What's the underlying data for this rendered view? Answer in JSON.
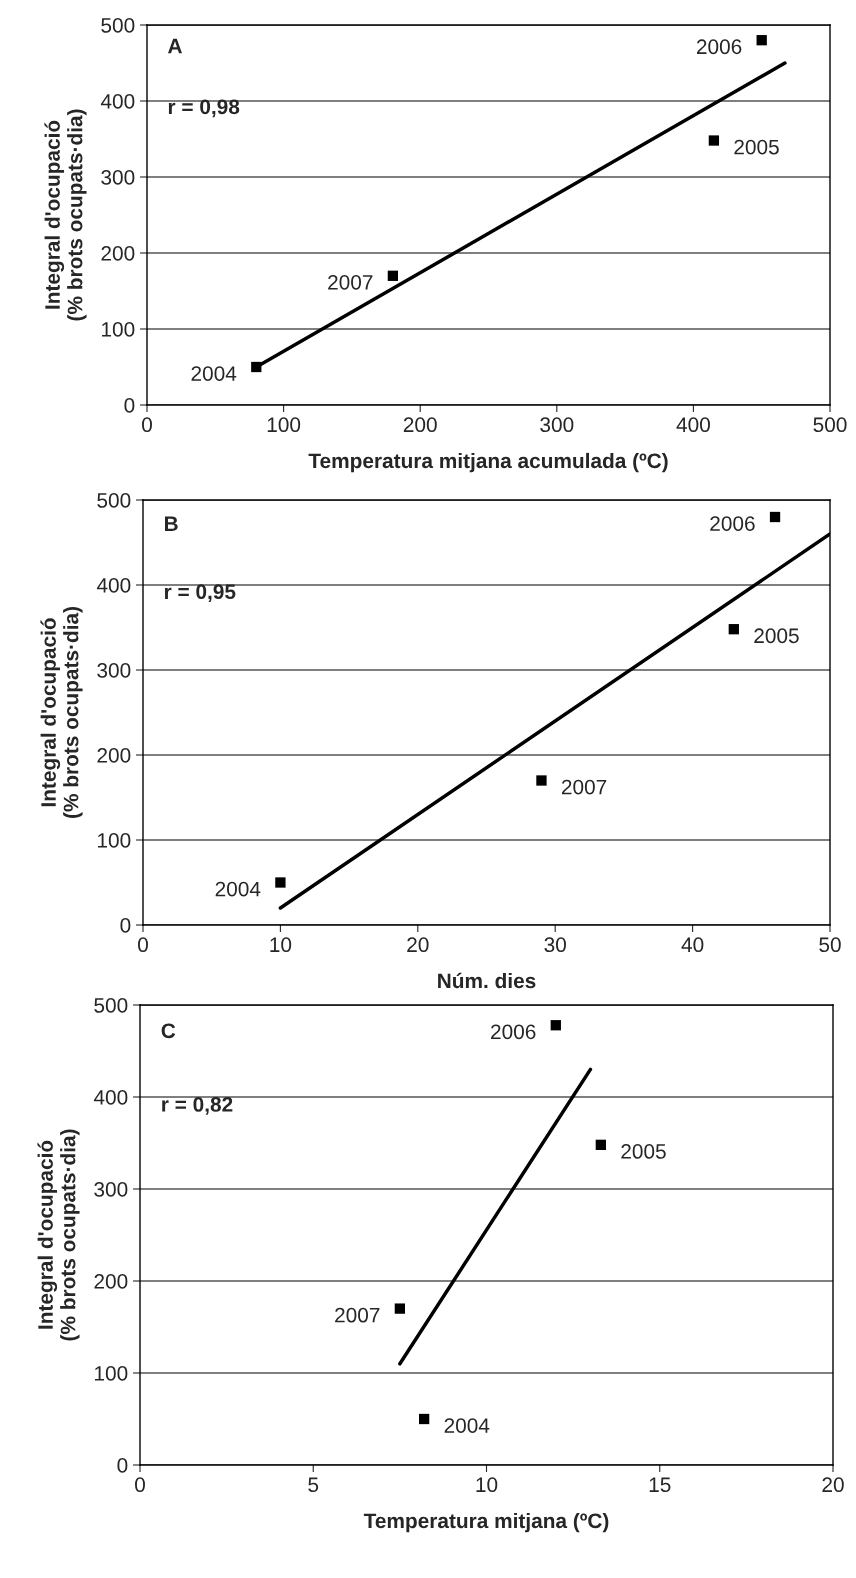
{
  "chart_data": [
    {
      "type": "scatter",
      "xlabel": "Temperatura mitjana acumulada (ºC)",
      "ylabel": "Integral d'ocupació\n(% brots ocupats·dia)",
      "xlim": [
        0,
        500
      ],
      "xticks": [
        0,
        100,
        200,
        300,
        400,
        500
      ],
      "ylim": [
        0,
        500
      ],
      "yticks": [
        0,
        100,
        200,
        300,
        400,
        500
      ],
      "grid": "y",
      "series": [
        {
          "marker": "square",
          "color": "#000000",
          "x": [
            80,
            180,
            415,
            450
          ],
          "values": [
            50,
            170,
            348,
            480
          ]
        },
        {
          "type": "line",
          "color": "#000000",
          "x": [
            80,
            467
          ],
          "values": [
            50,
            450
          ]
        }
      ],
      "annotations": [
        "A",
        "r = 0,98",
        {
          "text": "2004",
          "x": 80,
          "y": 50
        },
        {
          "text": "2007",
          "x": 180,
          "y": 170
        },
        {
          "text": "2005",
          "x": 415,
          "y": 348
        },
        {
          "text": "2006",
          "x": 450,
          "y": 480
        }
      ]
    },
    {
      "type": "scatter",
      "xlabel": "Núm. dies",
      "ylabel": "Integral d'ocupació\n(% brots ocupats·dia)",
      "xlim": [
        0,
        50
      ],
      "xticks": [
        0,
        10,
        20,
        30,
        40,
        50
      ],
      "ylim": [
        0,
        500
      ],
      "yticks": [
        0,
        100,
        200,
        300,
        400,
        500
      ],
      "grid": "y",
      "series": [
        {
          "marker": "square",
          "color": "#000000",
          "x": [
            10,
            29,
            43,
            46
          ],
          "values": [
            50,
            170,
            348,
            480
          ]
        },
        {
          "type": "line",
          "color": "#000000",
          "x": [
            10,
            50
          ],
          "values": [
            20,
            460
          ]
        }
      ],
      "annotations": [
        "B",
        "r = 0,95",
        {
          "text": "2004",
          "x": 10,
          "y": 50
        },
        {
          "text": "2007",
          "x": 29,
          "y": 170
        },
        {
          "text": "2005",
          "x": 43,
          "y": 348
        },
        {
          "text": "2006",
          "x": 46,
          "y": 480
        }
      ]
    },
    {
      "type": "scatter",
      "xlabel": "Temperatura mitjana (ºC)",
      "ylabel": "Integral d'ocupació\n(% brots ocupats·dia)",
      "xlim": [
        0,
        20
      ],
      "xticks": [
        0,
        5,
        10,
        15,
        20
      ],
      "ylim": [
        0,
        500
      ],
      "yticks": [
        0,
        100,
        200,
        300,
        400,
        500
      ],
      "grid": "y",
      "series": [
        {
          "marker": "square",
          "color": "#000000",
          "x": [
            8.2,
            7.5,
            13.3,
            12
          ],
          "values": [
            50,
            170,
            348,
            478
          ]
        },
        {
          "type": "line",
          "color": "#000000",
          "x": [
            7.5,
            13
          ],
          "values": [
            110,
            430
          ]
        }
      ],
      "annotations": [
        "C",
        "r = 0,82",
        {
          "text": "2004",
          "x": 8.2,
          "y": 50
        },
        {
          "text": "2007",
          "x": 7.5,
          "y": 170
        },
        {
          "text": "2005",
          "x": 13.3,
          "y": 348
        },
        {
          "text": "2006",
          "x": 12,
          "y": 478
        }
      ]
    }
  ]
}
